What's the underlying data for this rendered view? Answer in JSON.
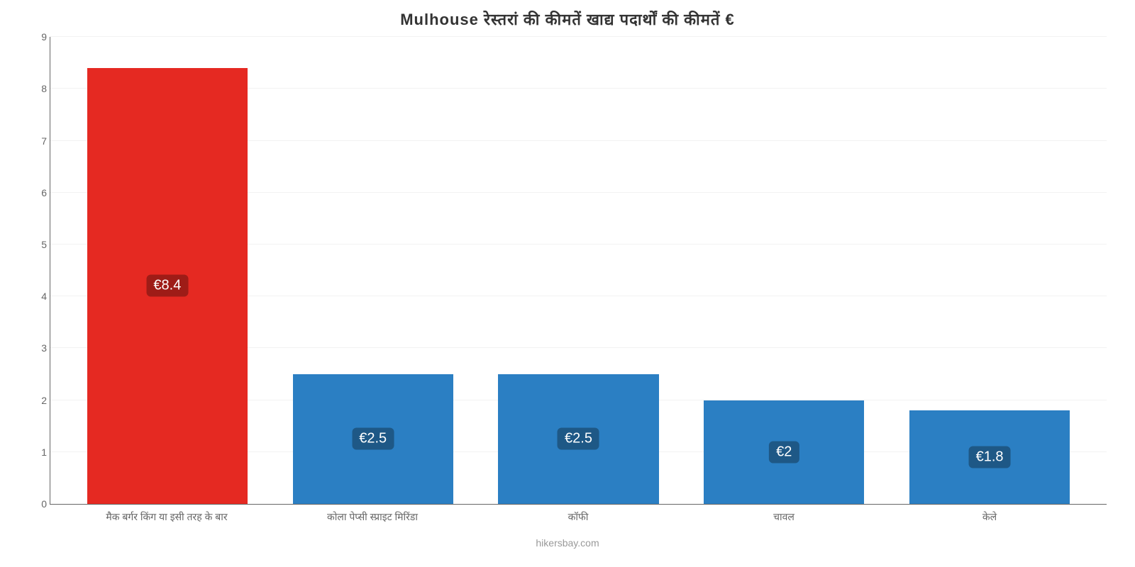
{
  "chart": {
    "type": "bar",
    "title": "Mulhouse रेस्तरां   की   कीमतें   खाद्य   पदार्थों   की   कीमतें   €",
    "title_fontsize": 22,
    "title_color": "#333333",
    "background_color": "#ffffff",
    "grid_color": "#f2f2f2",
    "axis_color": "#666666",
    "axis_label_color": "#666666",
    "axis_label_fontsize": 14,
    "ylim": [
      0,
      9
    ],
    "ytick_step": 1,
    "yticks": [
      0,
      1,
      2,
      3,
      4,
      5,
      6,
      7,
      8,
      9
    ],
    "categories": [
      "मैक बर्गर किंग या इसी तरह के बार",
      "कोला पेप्सी स्प्राइट मिरिंडा",
      "कॉफी",
      "चावल",
      "केले"
    ],
    "values": [
      8.4,
      2.5,
      2.5,
      2.0,
      1.8
    ],
    "value_labels": [
      "€8.4",
      "€2.5",
      "€2.5",
      "€2",
      "€1.8"
    ],
    "bar_colors": [
      "#e52922",
      "#2b7fc3",
      "#2b7fc3",
      "#2b7fc3",
      "#2b7fc3"
    ],
    "label_bg_colors": [
      "#9e1c17",
      "#1e5886",
      "#1e5886",
      "#1e5886",
      "#1e5886"
    ],
    "label_text_color": "#ffffff",
    "label_fontsize": 20,
    "bar_width": 0.78,
    "attribution": "hikersbay.com",
    "attribution_color": "#999999",
    "attribution_fontsize": 14
  }
}
